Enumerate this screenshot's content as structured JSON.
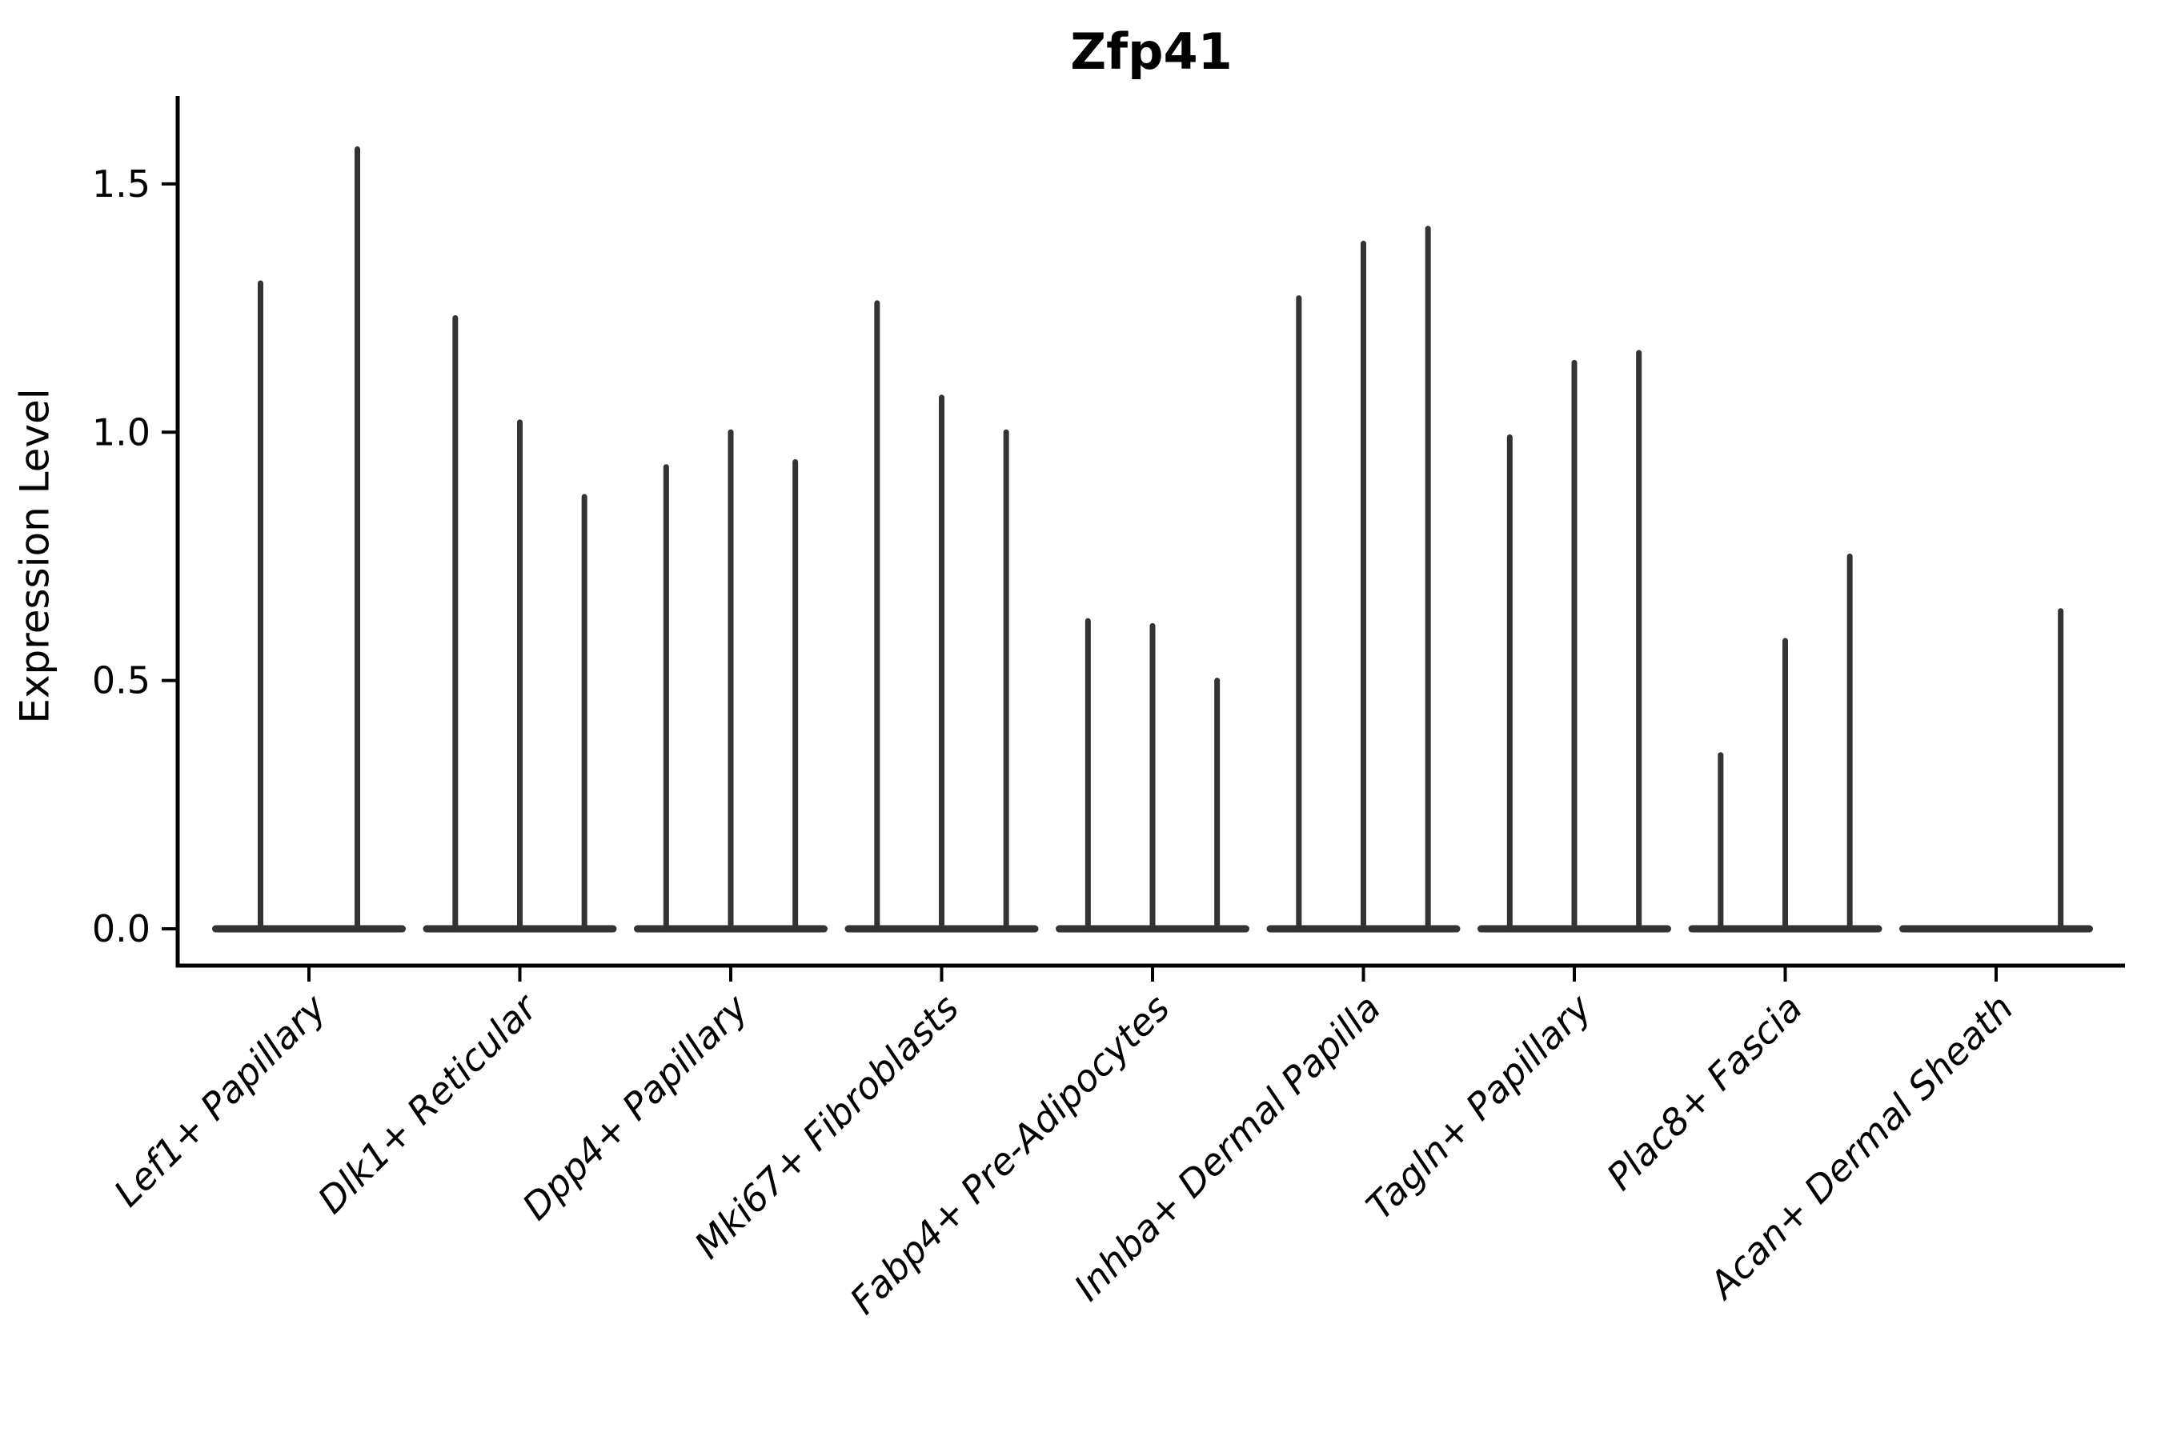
{
  "chart_data": {
    "type": "violin",
    "title": "Zfp41",
    "xlabel": "",
    "ylabel": "Expression Level",
    "background": "#ffffff",
    "axis_color": "#000000",
    "violin_color": "#333333",
    "grid": false,
    "legend": null,
    "ylim": [
      -0.074,
      1.677
    ],
    "yticks": [
      0.0,
      0.5,
      1.0,
      1.5
    ],
    "ytick_labels": [
      "0.0",
      "0.5",
      "1.0",
      "1.5"
    ],
    "categories": [
      "Lef1+ Papillary",
      "Dlk1+ Reticular",
      "Dpp4+ Papillary",
      "Mki67+ Fibroblasts",
      "Fabp4+ Pre-Adipocytes",
      "Inhba+ Dermal Papilla",
      "Tagln+ Papillary",
      "Plac8+ Fascia",
      "Acan+ Dermal Sheath"
    ],
    "groups": [
      {
        "category": "Lef1+ Papillary",
        "violin_maxima": [
          1.3,
          1.57
        ]
      },
      {
        "category": "Dlk1+ Reticular",
        "violin_maxima": [
          1.23,
          1.02,
          0.87
        ]
      },
      {
        "category": "Dpp4+ Papillary",
        "violin_maxima": [
          0.93,
          1.0,
          0.94
        ]
      },
      {
        "category": "Mki67+ Fibroblasts",
        "violin_maxima": [
          1.26,
          1.07,
          1.0
        ]
      },
      {
        "category": "Fabp4+ Pre-Adipocytes",
        "violin_maxima": [
          0.62,
          0.61,
          0.5
        ]
      },
      {
        "category": "Inhba+ Dermal Papilla",
        "violin_maxima": [
          1.27,
          1.38,
          1.41
        ]
      },
      {
        "category": "Tagln+ Papillary",
        "violin_maxima": [
          0.99,
          1.14,
          1.16
        ]
      },
      {
        "category": "Plac8+ Fascia",
        "violin_maxima": [
          0.35,
          0.58,
          0.75
        ]
      },
      {
        "category": "Acan+ Dermal Sheath",
        "violin_maxima": [
          0.0,
          0.0,
          0.64
        ]
      }
    ],
    "note": "Violins are needle-thin: density mass concentrated at 0 (flat base pancake) with a thin spike up to each listed maximum expression value."
  }
}
